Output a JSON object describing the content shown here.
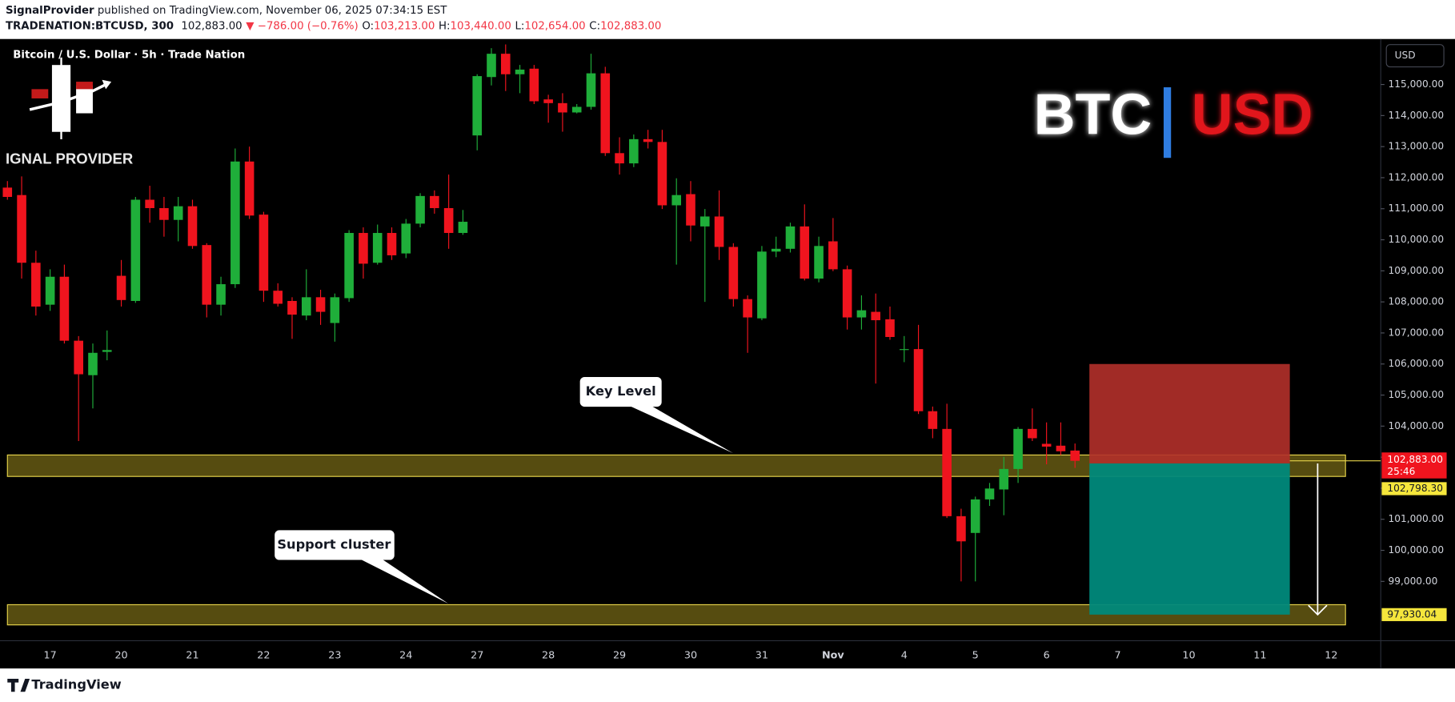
{
  "header": {
    "author": "SignalProvider",
    "published": "published on TradingView.com, November 06, 2025 07:34:15 EST",
    "symbol": "TRADENATION:BTCUSD, 300",
    "price": "102,883.00",
    "change": "▼ −786.00 (−0.76%)",
    "o_label": "O:",
    "o": "103,213.00",
    "h_label": "H:",
    "h": "103,440.00",
    "l_label": "L:",
    "l": "102,654.00",
    "c_label": "C:",
    "c": "102,883.00"
  },
  "footer": {
    "brand": "TradingView"
  },
  "logo": {
    "provider": "IGNAL PROVIDER",
    "left": "BTC",
    "right": "USD"
  },
  "chart_data": {
    "type": "candlestick",
    "title": "Bitcoin / U.S. Dollar · 5h · Trade Nation",
    "currency": "USD",
    "up_color": "#1fae3a",
    "down_color": "#f0141e",
    "categories": [
      null,
      null,
      null,
      "17",
      null,
      null,
      null,
      null,
      "20",
      null,
      null,
      null,
      null,
      "21",
      null,
      null,
      null,
      null,
      "22",
      null,
      null,
      null,
      null,
      "23",
      null,
      null,
      null,
      null,
      "24",
      null,
      null,
      null,
      null,
      "27",
      null,
      null,
      null,
      null,
      "28",
      null,
      null,
      null,
      null,
      "29",
      null,
      null,
      null,
      null,
      "30",
      null,
      null,
      null,
      null,
      "31",
      null,
      null,
      null,
      null,
      "Nov",
      null,
      null,
      null,
      null,
      "4",
      null,
      null,
      null,
      null,
      "5",
      null,
      null,
      null,
      null,
      "6",
      null,
      null,
      null,
      null,
      "7",
      null,
      null,
      null,
      null,
      "10",
      null,
      null,
      null,
      null,
      "11",
      null,
      null,
      null,
      null,
      "12"
    ],
    "open": [
      111680,
      111440,
      109260,
      107910,
      108810,
      106750,
      105640,
      106390,
      108840,
      108030,
      111290,
      111020,
      110640,
      111080,
      109830,
      107910,
      108570,
      112520,
      110810,
      108360,
      108030,
      107560,
      108150,
      107320,
      108120,
      110220,
      109260,
      110220,
      109560,
      110520,
      111410,
      111020,
      110220,
      113360,
      115240,
      115990,
      115330,
      115510,
      114520,
      114400,
      114100,
      114280,
      115360,
      112790,
      112460,
      113240,
      113150,
      111110,
      111470,
      110430,
      110750,
      109770,
      108090,
      107470,
      109620,
      109710,
      110430,
      108750,
      109950,
      109050,
      107500,
      107680,
      107440,
      106450,
      106480,
      104480,
      103910,
      101100,
      100560,
      101640,
      101960,
      102620,
      103910,
      103430,
      103370,
      103213,
      null,
      null,
      null,
      null,
      null,
      null,
      null,
      null,
      null,
      null,
      null,
      null,
      null,
      null,
      null,
      null,
      null,
      null
    ],
    "high": [
      111890,
      112040,
      109650,
      109050,
      109200,
      106900,
      106660,
      107080,
      109350,
      111380,
      111740,
      111380,
      111380,
      111290,
      109890,
      108810,
      112940,
      113000,
      110900,
      108600,
      108150,
      109050,
      108390,
      108270,
      110310,
      110400,
      110490,
      110400,
      110670,
      111500,
      111590,
      112100,
      110960,
      115330,
      116170,
      116290,
      115630,
      115630,
      114670,
      114720,
      114370,
      115990,
      115570,
      113300,
      113390,
      113540,
      113540,
      111980,
      111890,
      110990,
      111590,
      109890,
      108210,
      109800,
      110100,
      110550,
      111140,
      110100,
      110700,
      109170,
      108210,
      108270,
      107850,
      106900,
      107260,
      104630,
      104720,
      101340,
      101730,
      102170,
      103010,
      103970,
      104570,
      104120,
      104120,
      103440,
      null,
      null,
      null,
      null,
      null,
      null,
      null,
      null,
      null,
      null,
      null,
      null,
      null,
      null,
      null,
      null,
      null,
      null
    ],
    "low": [
      111290,
      108750,
      107560,
      107710,
      106660,
      103520,
      104570,
      106120,
      107850,
      107970,
      110550,
      110100,
      109950,
      109710,
      107500,
      107560,
      108450,
      110670,
      108000,
      107850,
      106810,
      107410,
      107260,
      106720,
      108000,
      108750,
      109200,
      109350,
      109410,
      110400,
      110840,
      109710,
      110160,
      112880,
      114970,
      114790,
      114720,
      114370,
      113770,
      113480,
      114070,
      114190,
      112700,
      112100,
      112340,
      112940,
      110990,
      109200,
      109950,
      108000,
      109350,
      107850,
      106360,
      107410,
      109440,
      109590,
      108690,
      108630,
      108990,
      107110,
      107110,
      105370,
      106780,
      106060,
      104390,
      103610,
      101040,
      99000,
      99000,
      101430,
      101130,
      102170,
      103520,
      102770,
      103070,
      102654,
      null,
      null,
      null,
      null,
      null,
      null,
      null,
      null,
      null,
      null,
      null,
      null,
      null,
      null,
      null,
      null,
      null,
      null
    ],
    "close": [
      111380,
      109260,
      107850,
      108810,
      106750,
      105670,
      106360,
      106450,
      108060,
      111290,
      111020,
      110640,
      111080,
      109800,
      107910,
      108570,
      112520,
      110780,
      108360,
      107940,
      107590,
      108150,
      107680,
      108150,
      110220,
      109230,
      110220,
      109500,
      110520,
      111410,
      111020,
      110220,
      110580,
      115270,
      115990,
      115330,
      115480,
      114460,
      114400,
      114100,
      114280,
      115360,
      112790,
      112460,
      113240,
      113150,
      111110,
      111440,
      110460,
      110750,
      109770,
      108090,
      107500,
      109620,
      109710,
      110430,
      108750,
      109800,
      109050,
      107500,
      107730,
      107410,
      106870,
      106480,
      104480,
      103910,
      101100,
      100290,
      101640,
      101990,
      102620,
      103910,
      103610,
      103340,
      103190,
      102883,
      null,
      null,
      null,
      null,
      null,
      null,
      null,
      null,
      null,
      null,
      null,
      null,
      null,
      null,
      null,
      null,
      null,
      null
    ],
    "ylim": [
      97090,
      116465
    ],
    "yticks": [
      {
        "value": 99000,
        "label": "99,000.00"
      },
      {
        "value": 100000,
        "label": "100,000.00"
      },
      {
        "value": 101000,
        "label": "101,000.00"
      },
      {
        "value": 102000,
        "label": "102,000.00"
      },
      {
        "value": 103000,
        "label": "103,000.00"
      },
      {
        "value": 104000,
        "label": "104,000.00"
      },
      {
        "value": 105000,
        "label": "105,000.00"
      },
      {
        "value": 106000,
        "label": "106,000.00"
      },
      {
        "value": 107000,
        "label": "107,000.00"
      },
      {
        "value": 108000,
        "label": "108,000.00"
      },
      {
        "value": 109000,
        "label": "109,000.00"
      },
      {
        "value": 110000,
        "label": "110,000.00"
      },
      {
        "value": 111000,
        "label": "111,000.00"
      },
      {
        "value": 112000,
        "label": "112,000.00"
      },
      {
        "value": 113000,
        "label": "113,000.00"
      },
      {
        "value": 114000,
        "label": "114,000.00"
      },
      {
        "value": 115000,
        "label": "115,000.00"
      }
    ],
    "grid": false,
    "last_price": {
      "value": 102883,
      "label": "102,883.00"
    },
    "countdown": "25:46",
    "zones": [
      {
        "lower": 102380,
        "upper": 103070
      },
      {
        "lower": 97600,
        "upper": 98250
      }
    ],
    "zone_color": "#9c8a1e",
    "zone_border": "#e6d34a",
    "position": {
      "entry": {
        "value": 102798.3,
        "label": "102,798.30"
      },
      "stop": 106000,
      "target": {
        "value": 97930.04,
        "label": "97,930.04"
      },
      "stop_color": "#b2302a",
      "target_color": "#00897b"
    },
    "annotations": [
      {
        "text": "Key Level"
      },
      {
        "text": "Support cluster"
      }
    ]
  }
}
